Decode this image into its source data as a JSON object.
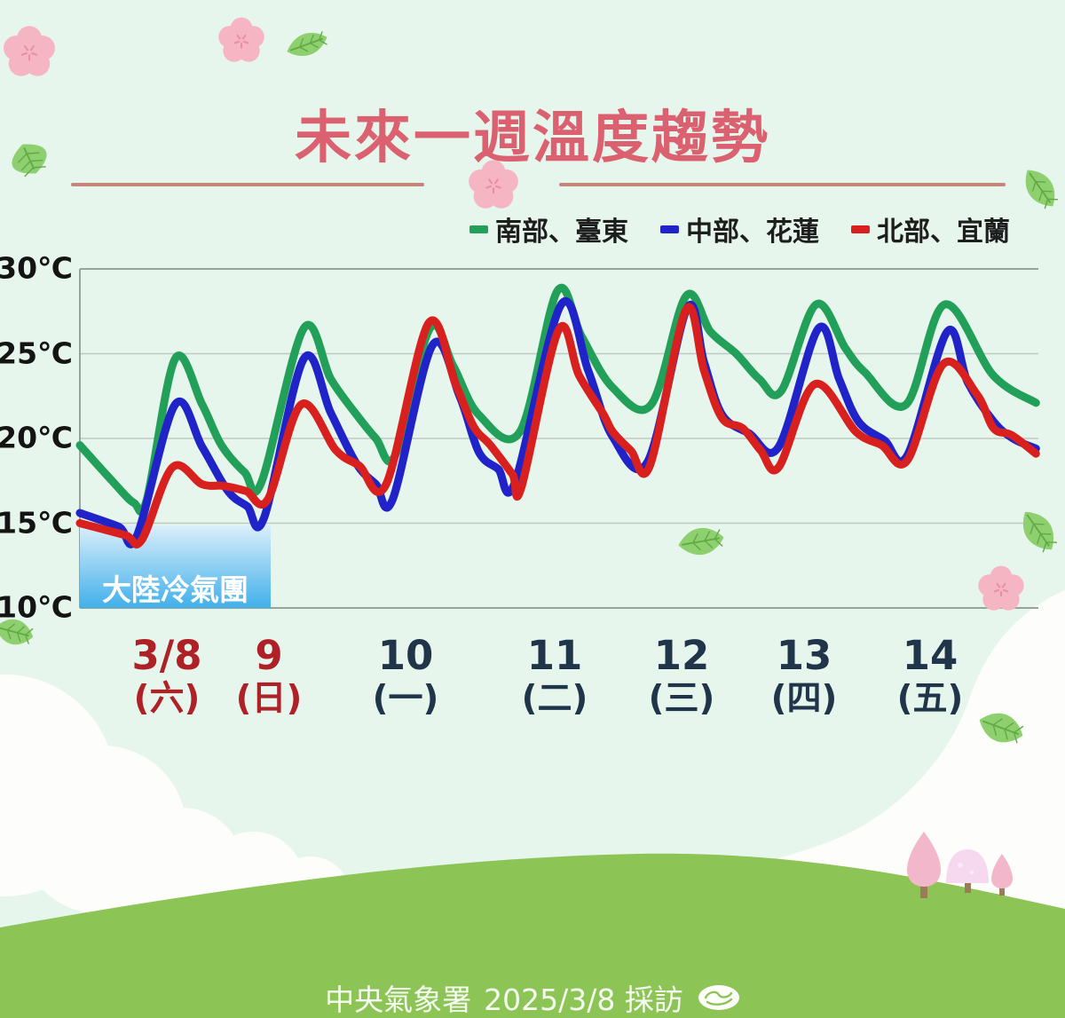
{
  "title": "未來一週溫度趨勢",
  "legend": {
    "items": [
      {
        "label": "南部、臺東",
        "color": "#22a05a"
      },
      {
        "label": "中部、花蓮",
        "color": "#2024c8"
      },
      {
        "label": "北部、宜蘭",
        "color": "#d8201f"
      }
    ]
  },
  "annotation": {
    "label": "大陸冷氣團"
  },
  "footer": {
    "agency": "中央氣象署",
    "date_note": "2025/3/8 採訪",
    "logo": "cwa-logo"
  },
  "decorations": [
    "flower-icon",
    "leaf-icon",
    "cloud",
    "hill",
    "tree-icon"
  ],
  "colors": {
    "background": "#e7f6ed",
    "title": "#db6170",
    "divider": "#c9837b",
    "hill": "#8cc556",
    "cloud": "#fdfefb",
    "cold_box_top": "#dbeffb",
    "cold_box_bottom": "#41b0ea",
    "weekend_label": "#ad2127",
    "weekday_label": "#20354a"
  },
  "chart_data": {
    "type": "line",
    "title": "未來一週溫度趨勢",
    "ylabel": "°C",
    "ylim": [
      10,
      30
    ],
    "yticks": [
      "30℃",
      "25℃",
      "20℃",
      "15℃",
      "10℃"
    ],
    "ytick_values": [
      30,
      25,
      20,
      15,
      10
    ],
    "grid": true,
    "legend_position": "top-right",
    "x_days": [
      {
        "date": "3/8",
        "weekday": "(六)",
        "color": "#ad2127"
      },
      {
        "date": "9",
        "weekday": "(日)",
        "color": "#ad2127"
      },
      {
        "date": "10",
        "weekday": "(一)",
        "color": "#20354a"
      },
      {
        "date": "11",
        "weekday": "(二)",
        "color": "#20354a"
      },
      {
        "date": "12",
        "weekday": "(三)",
        "color": "#20354a"
      },
      {
        "date": "13",
        "weekday": "(四)",
        "color": "#20354a"
      },
      {
        "date": "14",
        "weekday": "(五)",
        "color": "#20354a"
      }
    ],
    "series": [
      {
        "name": "南部、臺東",
        "color": "#22a05a",
        "points": [
          [
            0,
            19.6
          ],
          [
            0.25,
            17.5
          ],
          [
            0.42,
            16.2
          ],
          [
            0.52,
            16.4
          ],
          [
            0.74,
            24.7
          ],
          [
            0.95,
            22
          ],
          [
            1.1,
            19.6
          ],
          [
            1.28,
            18
          ],
          [
            1.41,
            17.4
          ],
          [
            1.74,
            26.5
          ],
          [
            1.95,
            23.5
          ],
          [
            2.14,
            21.5
          ],
          [
            2.3,
            20
          ],
          [
            2.45,
            19
          ],
          [
            2.72,
            26.5
          ],
          [
            2.9,
            24.3
          ],
          [
            3.1,
            21.4
          ],
          [
            3.42,
            20.4
          ],
          [
            3.71,
            28.7
          ],
          [
            3.9,
            26
          ],
          [
            4.14,
            23
          ],
          [
            4.44,
            22
          ],
          [
            4.71,
            28.4
          ],
          [
            4.9,
            26.3
          ],
          [
            5.1,
            25
          ],
          [
            5.28,
            23.5
          ],
          [
            5.45,
            22.8
          ],
          [
            5.72,
            27.9
          ],
          [
            5.95,
            25.3
          ],
          [
            6.1,
            23.9
          ],
          [
            6.42,
            22
          ],
          [
            6.72,
            27.9
          ],
          [
            7.1,
            23.7
          ],
          [
            7.43,
            22.1
          ]
        ]
      },
      {
        "name": "中部、花蓮",
        "color": "#2024c8",
        "points": [
          [
            0,
            15.6
          ],
          [
            0.3,
            14.8
          ],
          [
            0.44,
            14.2
          ],
          [
            0.74,
            22
          ],
          [
            0.95,
            19.5
          ],
          [
            1.15,
            16.9
          ],
          [
            1.3,
            16
          ],
          [
            1.43,
            15.3
          ],
          [
            1.74,
            24.7
          ],
          [
            1.95,
            21.5
          ],
          [
            2.15,
            18.5
          ],
          [
            2.3,
            17.3
          ],
          [
            2.43,
            16.4
          ],
          [
            2.74,
            25.5
          ],
          [
            2.95,
            22.5
          ],
          [
            3.1,
            19.2
          ],
          [
            3.25,
            18.2
          ],
          [
            3.38,
            17.4
          ],
          [
            3.74,
            27.9
          ],
          [
            3.95,
            24
          ],
          [
            4.14,
            20.1
          ],
          [
            4.41,
            18.6
          ],
          [
            4.72,
            27.7
          ],
          [
            4.85,
            24.5
          ],
          [
            4.99,
            21.4
          ],
          [
            5.2,
            20.3
          ],
          [
            5.43,
            19.5
          ],
          [
            5.74,
            26.5
          ],
          [
            5.9,
            23.5
          ],
          [
            6.05,
            21
          ],
          [
            6.25,
            19.9
          ],
          [
            6.43,
            19
          ],
          [
            6.74,
            26.3
          ],
          [
            6.9,
            23.3
          ],
          [
            7.1,
            21
          ],
          [
            7.25,
            20
          ],
          [
            7.43,
            19.4
          ]
        ]
      },
      {
        "name": "北部、宜蘭",
        "color": "#d8201f",
        "points": [
          [
            0,
            15
          ],
          [
            0.35,
            14.3
          ],
          [
            0.48,
            14
          ],
          [
            0.72,
            18.3
          ],
          [
            0.95,
            17.3
          ],
          [
            1.12,
            17.2
          ],
          [
            1.29,
            16.9
          ],
          [
            1.46,
            16.4
          ],
          [
            1.72,
            22
          ],
          [
            1.99,
            19.3
          ],
          [
            2.17,
            18.4
          ],
          [
            2.38,
            17.3
          ],
          [
            2.71,
            26.8
          ],
          [
            2.92,
            23.2
          ],
          [
            3.06,
            20.7
          ],
          [
            3.19,
            19.6
          ],
          [
            3.36,
            17.9
          ],
          [
            3.43,
            17.1
          ],
          [
            3.72,
            26.4
          ],
          [
            3.88,
            23.7
          ],
          [
            4.07,
            21.4
          ],
          [
            4.14,
            20.4
          ],
          [
            4.28,
            19.3
          ],
          [
            4.43,
            18.4
          ],
          [
            4.71,
            27.6
          ],
          [
            4.85,
            24
          ],
          [
            4.99,
            21.2
          ],
          [
            5.15,
            20.6
          ],
          [
            5.29,
            19.3
          ],
          [
            5.43,
            18.3
          ],
          [
            5.71,
            23.2
          ],
          [
            6.03,
            20.4
          ],
          [
            6.23,
            19.6
          ],
          [
            6.43,
            18.7
          ],
          [
            6.71,
            24.4
          ],
          [
            6.97,
            22.6
          ],
          [
            7.1,
            20.6
          ],
          [
            7.24,
            20.2
          ],
          [
            7.43,
            19.1
          ]
        ]
      }
    ],
    "annotation": {
      "label": "大陸冷氣團",
      "x_range_days": [
        0,
        1.48
      ],
      "y_range": [
        10,
        14.9
      ]
    }
  }
}
